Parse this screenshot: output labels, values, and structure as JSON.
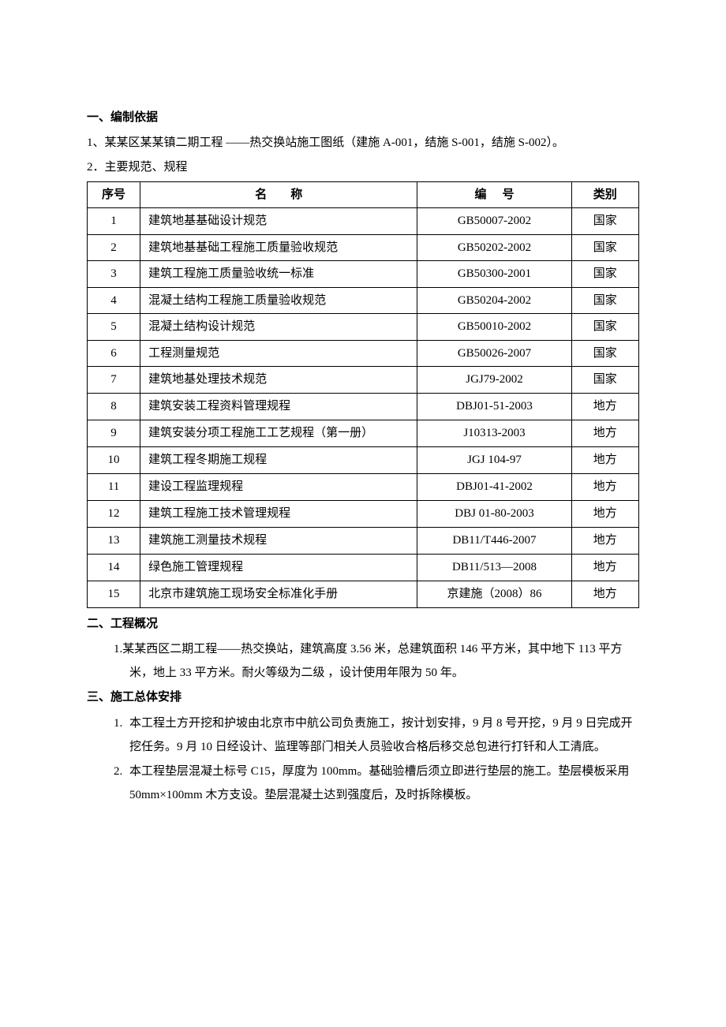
{
  "section1": {
    "title": "一、编制依据",
    "p1": "1、某某区某某镇二期工程   ——热交换站施工图纸（建施 A-001，结施 S-001，结施 S-002）。",
    "p2": "2．主要规范、规程"
  },
  "spec_table": {
    "headers": {
      "idx": "序号",
      "name": "名称",
      "code": "编号",
      "cat": "类别"
    },
    "rows": [
      {
        "idx": "1",
        "name": "建筑地基基础设计规范",
        "code": "GB50007-2002",
        "cat": "国家",
        "size": "sm"
      },
      {
        "idx": "2",
        "name": "建筑地基基础工程施工质量验收规范",
        "code": "GB50202-2002",
        "cat": "国家",
        "size": "sm"
      },
      {
        "idx": "3",
        "name": "建筑工程施工质量验收统一标准",
        "code": "GB50300-2001",
        "cat": "国家",
        "size": "sm"
      },
      {
        "idx": "4",
        "name": "混凝土结构工程施工质量验收规范",
        "code": "GB50204-2002",
        "cat": "国家",
        "size": "sm"
      },
      {
        "idx": "5",
        "name": "混凝土结构设计规范",
        "code": "GB50010-2002",
        "cat": "国家",
        "size": "sm"
      },
      {
        "idx": "6",
        "name": "工程测量规范",
        "code": "GB50026-2007",
        "cat": "国家",
        "size": "sm"
      },
      {
        "idx": "7",
        "name": "建筑地基处理技术规范",
        "code": "JGJ79-2002",
        "cat": "国家",
        "size": "sm"
      },
      {
        "idx": "8",
        "name": "建筑安装工程资料管理规程",
        "code": "DBJ01-51-2003",
        "cat": "地方",
        "size": "lg"
      },
      {
        "idx": "9",
        "name": "建筑安装分项工程施工工艺规程（第一册）",
        "code": "J10313-2003",
        "cat": "地方",
        "size": "lg"
      },
      {
        "idx": "10",
        "name": "建筑工程冬期施工规程",
        "code": "JGJ 104-97",
        "cat": "地方",
        "size": "lg"
      },
      {
        "idx": "11",
        "name": "建设工程监理规程",
        "code": "DBJ01-41-2002",
        "cat": "地方",
        "size": "lg"
      },
      {
        "idx": "12",
        "name": "建筑工程施工技术管理规程",
        "code": "DBJ 01-80-2003",
        "cat": "地方",
        "size": "lg"
      },
      {
        "idx": "13",
        "name": "建筑施工测量技术规程",
        "code": "DB11/T446-2007",
        "cat": "地方",
        "size": "lg"
      },
      {
        "idx": "14",
        "name": "绿色施工管理规程",
        "code": "DB11/513—2008",
        "cat": "地方",
        "size": "lg"
      },
      {
        "idx": "15",
        "name": "北京市建筑施工现场安全标准化手册",
        "code": "京建施（2008）86",
        "cat": "地方",
        "size": "lg"
      }
    ]
  },
  "section2": {
    "title": "二、工程概况",
    "items": [
      {
        "num": "1.",
        "text": "某某西区二期工程——热交换站，建筑高度 3.56 米，总建筑面积 146 平方米，其中地下 113 平方米，地上 33 平方米。耐火等级为二级 ，设计使用年限为 50 年。"
      }
    ]
  },
  "section3": {
    "title": "三、施工总体安排",
    "items": [
      {
        "num": "1.",
        "text": "本工程土方开挖和护坡由北京市中航公司负责施工，按计划安排，9 月 8 号开挖，9 月 9 日完成开挖任务。9 月 10 日经设计、监理等部门相关人员验收合格后移交总包进行打钎和人工清底。"
      },
      {
        "num": "2.",
        "text": "本工程垫层混凝土标号 C15，厚度为 100mm。基础验槽后须立即进行垫层的施工。垫层模板采用 50mm×100mm 木方支设。垫层混凝土达到强度后，及时拆除模板。"
      }
    ]
  }
}
